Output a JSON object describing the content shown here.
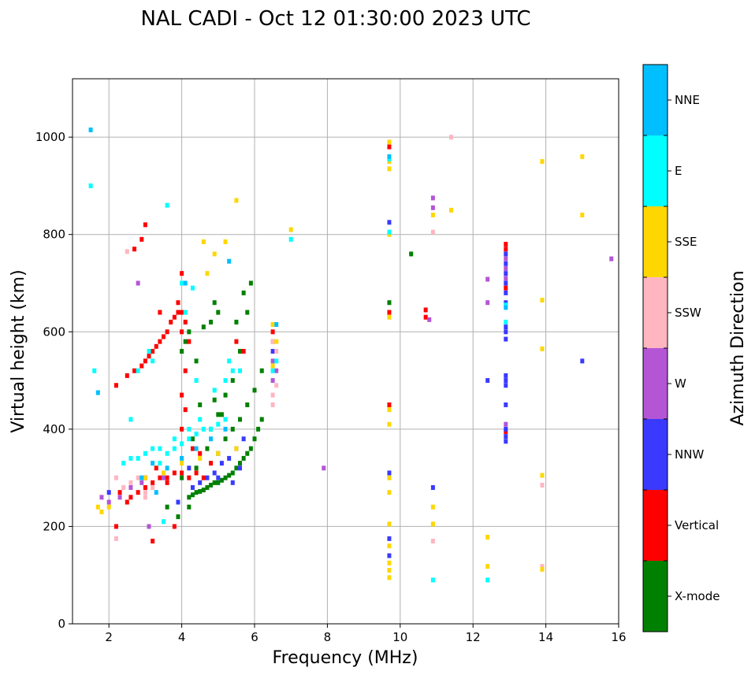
{
  "chart_data": {
    "type": "scatter",
    "title": "NAL CADI - Oct 12 01:30:00 2023 UTC",
    "xlabel": "Frequency (MHz)",
    "ylabel": "Virtual height (km)",
    "xlim": [
      1,
      16
    ],
    "ylim": [
      0,
      1120
    ],
    "xticks": [
      2,
      4,
      6,
      8,
      10,
      12,
      14,
      16
    ],
    "yticks": [
      0,
      200,
      400,
      600,
      800,
      1000
    ],
    "grid": true,
    "colorbar": {
      "label": "Azimuth Direction",
      "categories": [
        {
          "name": "X-mode",
          "color": "#008000"
        },
        {
          "name": "Vertical",
          "color": "#ff0000"
        },
        {
          "name": "NNW",
          "color": "#3a3aff"
        },
        {
          "name": "W",
          "color": "#b455d6"
        },
        {
          "name": "SSW",
          "color": "#ffb6c1"
        },
        {
          "name": "SSE",
          "color": "#ffd700"
        },
        {
          "name": "E",
          "color": "#00ffff"
        },
        {
          "name": "NNE",
          "color": "#00bfff"
        }
      ]
    },
    "series": [
      {
        "name": "X-mode",
        "points": [
          [
            4.2,
            260
          ],
          [
            4.3,
            265
          ],
          [
            4.4,
            270
          ],
          [
            4.5,
            272
          ],
          [
            4.6,
            275
          ],
          [
            4.7,
            280
          ],
          [
            4.8,
            285
          ],
          [
            4.9,
            290
          ],
          [
            5.0,
            290
          ],
          [
            5.1,
            295
          ],
          [
            5.2,
            300
          ],
          [
            5.3,
            305
          ],
          [
            5.4,
            310
          ],
          [
            5.5,
            320
          ],
          [
            5.6,
            330
          ],
          [
            5.7,
            340
          ],
          [
            5.8,
            350
          ],
          [
            5.9,
            360
          ],
          [
            6.0,
            380
          ],
          [
            6.1,
            400
          ],
          [
            6.2,
            420
          ],
          [
            5.0,
            350
          ],
          [
            5.2,
            380
          ],
          [
            5.4,
            400
          ],
          [
            5.6,
            420
          ],
          [
            5.8,
            450
          ],
          [
            6.0,
            480
          ],
          [
            6.2,
            520
          ],
          [
            4.8,
            400
          ],
          [
            5.0,
            430
          ],
          [
            5.2,
            470
          ],
          [
            5.4,
            500
          ],
          [
            5.6,
            560
          ],
          [
            5.8,
            640
          ],
          [
            5.9,
            700
          ],
          [
            5.7,
            680
          ],
          [
            5.5,
            620
          ],
          [
            4.6,
            610
          ],
          [
            4.8,
            620
          ],
          [
            5.0,
            640
          ],
          [
            4.9,
            660
          ],
          [
            4.4,
            540
          ],
          [
            4.0,
            560
          ],
          [
            4.1,
            580
          ],
          [
            4.2,
            600
          ],
          [
            3.9,
            220
          ],
          [
            4.0,
            300
          ],
          [
            4.4,
            320
          ],
          [
            4.7,
            360
          ],
          [
            5.1,
            430
          ],
          [
            4.5,
            450
          ],
          [
            4.9,
            460
          ],
          [
            4.3,
            380
          ],
          [
            10.3,
            760
          ],
          [
            9.7,
            660
          ],
          [
            3.6,
            240
          ],
          [
            4.2,
            240
          ]
        ]
      },
      {
        "name": "Vertical",
        "points": [
          [
            2.5,
            250
          ],
          [
            2.6,
            260
          ],
          [
            2.8,
            270
          ],
          [
            3.0,
            280
          ],
          [
            3.2,
            290
          ],
          [
            3.4,
            300
          ],
          [
            3.6,
            300
          ],
          [
            3.8,
            310
          ],
          [
            4.0,
            310
          ],
          [
            4.2,
            300
          ],
          [
            4.4,
            310
          ],
          [
            4.6,
            300
          ],
          [
            3.0,
            300
          ],
          [
            3.3,
            320
          ],
          [
            3.6,
            290
          ],
          [
            2.2,
            490
          ],
          [
            2.5,
            510
          ],
          [
            2.7,
            520
          ],
          [
            2.9,
            530
          ],
          [
            3.0,
            540
          ],
          [
            3.1,
            550
          ],
          [
            3.2,
            560
          ],
          [
            3.3,
            570
          ],
          [
            3.4,
            580
          ],
          [
            3.5,
            590
          ],
          [
            3.6,
            600
          ],
          [
            3.7,
            620
          ],
          [
            3.8,
            630
          ],
          [
            3.9,
            640
          ],
          [
            4.0,
            600
          ],
          [
            4.1,
            620
          ],
          [
            4.2,
            580
          ],
          [
            4.0,
            470
          ],
          [
            4.1,
            440
          ],
          [
            4.0,
            400
          ],
          [
            4.3,
            360
          ],
          [
            4.5,
            350
          ],
          [
            4.8,
            330
          ],
          [
            3.0,
            820
          ],
          [
            2.9,
            790
          ],
          [
            2.7,
            770
          ],
          [
            4.0,
            720
          ],
          [
            3.9,
            660
          ],
          [
            5.5,
            580
          ],
          [
            5.7,
            560
          ],
          [
            4.0,
            640
          ],
          [
            4.1,
            520
          ],
          [
            3.2,
            170
          ],
          [
            2.2,
            200
          ],
          [
            3.8,
            200
          ],
          [
            6.5,
            600
          ],
          [
            9.7,
            450
          ],
          [
            9.7,
            640
          ],
          [
            9.7,
            980
          ],
          [
            10.7,
            630
          ],
          [
            10.7,
            645
          ],
          [
            12.9,
            780
          ],
          [
            12.9,
            770
          ],
          [
            12.9,
            690
          ],
          [
            12.9,
            395
          ],
          [
            13.9,
            115
          ],
          [
            3.4,
            640
          ],
          [
            2.3,
            270
          ]
        ]
      },
      {
        "name": "NNW",
        "points": [
          [
            4.5,
            290
          ],
          [
            4.7,
            300
          ],
          [
            4.9,
            310
          ],
          [
            5.1,
            330
          ],
          [
            5.3,
            340
          ],
          [
            5.5,
            360
          ],
          [
            5.7,
            380
          ],
          [
            4.3,
            280
          ],
          [
            5.0,
            300
          ],
          [
            5.4,
            290
          ],
          [
            5.6,
            320
          ],
          [
            3.9,
            250
          ],
          [
            4.2,
            320
          ],
          [
            9.7,
            310
          ],
          [
            9.7,
            175
          ],
          [
            9.7,
            140
          ],
          [
            9.7,
            825
          ],
          [
            10.9,
            280
          ],
          [
            12.9,
            760
          ],
          [
            12.9,
            740
          ],
          [
            12.9,
            720
          ],
          [
            12.9,
            700
          ],
          [
            12.9,
            680
          ],
          [
            12.9,
            660
          ],
          [
            12.9,
            610
          ],
          [
            12.9,
            600
          ],
          [
            12.9,
            585
          ],
          [
            12.9,
            510
          ],
          [
            12.9,
            500
          ],
          [
            12.9,
            490
          ],
          [
            12.9,
            450
          ],
          [
            12.9,
            400
          ],
          [
            12.9,
            385
          ],
          [
            12.9,
            375
          ],
          [
            12.4,
            500
          ],
          [
            15.0,
            540
          ],
          [
            2.0,
            270
          ],
          [
            6.5,
            560
          ]
        ]
      },
      {
        "name": "W",
        "points": [
          [
            1.8,
            260
          ],
          [
            2.0,
            250
          ],
          [
            2.3,
            260
          ],
          [
            2.6,
            280
          ],
          [
            2.9,
            290
          ],
          [
            3.1,
            200
          ],
          [
            6.5,
            500
          ],
          [
            6.5,
            540
          ],
          [
            6.5,
            580
          ],
          [
            6.6,
            520
          ],
          [
            7.9,
            320
          ],
          [
            10.9,
            875
          ],
          [
            10.9,
            855
          ],
          [
            10.8,
            625
          ],
          [
            12.9,
            750
          ],
          [
            12.9,
            730
          ],
          [
            12.9,
            710
          ],
          [
            12.9,
            410
          ],
          [
            12.4,
            660
          ],
          [
            12.4,
            708
          ],
          [
            15.8,
            750
          ],
          [
            3.5,
            300
          ],
          [
            2.8,
            700
          ]
        ]
      },
      {
        "name": "SSW",
        "points": [
          [
            2.2,
            300
          ],
          [
            2.4,
            280
          ],
          [
            2.6,
            290
          ],
          [
            2.8,
            300
          ],
          [
            3.0,
            270
          ],
          [
            3.2,
            280
          ],
          [
            6.5,
            450
          ],
          [
            6.5,
            470
          ],
          [
            6.6,
            490
          ],
          [
            6.6,
            560
          ],
          [
            6.5,
            580
          ],
          [
            10.9,
            805
          ],
          [
            10.9,
            170
          ],
          [
            13.9,
            285
          ],
          [
            13.9,
            118
          ],
          [
            11.4,
            1000
          ],
          [
            2.2,
            175
          ],
          [
            2.5,
            765
          ],
          [
            3.0,
            260
          ]
        ]
      },
      {
        "name": "SSE",
        "points": [
          [
            1.7,
            240
          ],
          [
            1.8,
            230
          ],
          [
            2.0,
            240
          ],
          [
            3.0,
            300
          ],
          [
            3.5,
            310
          ],
          [
            4.0,
            330
          ],
          [
            4.5,
            340
          ],
          [
            5.0,
            350
          ],
          [
            5.5,
            360
          ],
          [
            4.9,
            760
          ],
          [
            4.6,
            785
          ],
          [
            5.2,
            785
          ],
          [
            6.5,
            615
          ],
          [
            6.6,
            580
          ],
          [
            6.5,
            530
          ],
          [
            7.0,
            810
          ],
          [
            9.7,
            990
          ],
          [
            9.7,
            950
          ],
          [
            9.7,
            935
          ],
          [
            9.7,
            800
          ],
          [
            9.7,
            630
          ],
          [
            9.7,
            440
          ],
          [
            9.7,
            410
          ],
          [
            9.7,
            300
          ],
          [
            9.7,
            270
          ],
          [
            9.7,
            205
          ],
          [
            9.7,
            160
          ],
          [
            9.7,
            125
          ],
          [
            9.7,
            110
          ],
          [
            9.7,
            95
          ],
          [
            10.9,
            840
          ],
          [
            10.9,
            240
          ],
          [
            10.9,
            205
          ],
          [
            11.4,
            850
          ],
          [
            12.4,
            178
          ],
          [
            12.4,
            118
          ],
          [
            13.9,
            950
          ],
          [
            13.9,
            665
          ],
          [
            13.9,
            565
          ],
          [
            13.9,
            305
          ],
          [
            13.9,
            112
          ],
          [
            15.0,
            960
          ],
          [
            15.0,
            840
          ],
          [
            4.7,
            720
          ],
          [
            5.5,
            870
          ]
        ]
      },
      {
        "name": "E",
        "points": [
          [
            2.4,
            330
          ],
          [
            2.6,
            340
          ],
          [
            2.8,
            340
          ],
          [
            3.0,
            350
          ],
          [
            3.2,
            360
          ],
          [
            3.4,
            360
          ],
          [
            3.6,
            350
          ],
          [
            3.8,
            360
          ],
          [
            4.0,
            370
          ],
          [
            4.2,
            380
          ],
          [
            4.4,
            390
          ],
          [
            4.6,
            400
          ],
          [
            4.8,
            400
          ],
          [
            5.0,
            410
          ],
          [
            5.2,
            420
          ],
          [
            4.2,
            400
          ],
          [
            4.5,
            420
          ],
          [
            3.4,
            330
          ],
          [
            3.8,
            380
          ],
          [
            4.4,
            500
          ],
          [
            5.2,
            500
          ],
          [
            5.4,
            520
          ],
          [
            4.0,
            700
          ],
          [
            4.1,
            640
          ],
          [
            4.3,
            690
          ],
          [
            3.6,
            860
          ],
          [
            3.2,
            540
          ],
          [
            3.1,
            560
          ],
          [
            2.8,
            520
          ],
          [
            1.6,
            520
          ],
          [
            1.5,
            900
          ],
          [
            2.6,
            420
          ],
          [
            6.5,
            520
          ],
          [
            6.6,
            540
          ],
          [
            7.0,
            790
          ],
          [
            9.7,
            955
          ],
          [
            9.7,
            805
          ],
          [
            10.9,
            90
          ],
          [
            12.4,
            90
          ],
          [
            12.9,
            655
          ],
          [
            12.9,
            620
          ],
          [
            5.3,
            540
          ],
          [
            5.6,
            520
          ],
          [
            4.9,
            480
          ],
          [
            3.5,
            210
          ]
        ]
      },
      {
        "name": "NNE",
        "points": [
          [
            1.5,
            1015
          ],
          [
            1.7,
            475
          ],
          [
            3.2,
            330
          ],
          [
            3.6,
            320
          ],
          [
            4.0,
            340
          ],
          [
            4.4,
            360
          ],
          [
            4.8,
            380
          ],
          [
            5.2,
            400
          ],
          [
            6.6,
            615
          ],
          [
            9.7,
            960
          ],
          [
            12.9,
            650
          ],
          [
            2.9,
            300
          ],
          [
            3.3,
            270
          ],
          [
            4.1,
            700
          ],
          [
            5.3,
            745
          ]
        ]
      }
    ]
  }
}
